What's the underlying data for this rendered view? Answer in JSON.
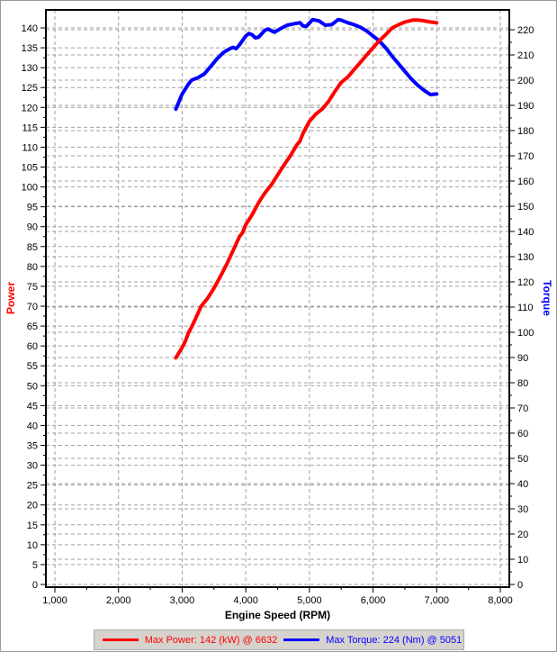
{
  "colors": {
    "power": "#ff0000",
    "torque": "#0000ff",
    "grid": "#a0a0a0",
    "axis_frame": "#000000",
    "legend_bg": "#d6d3ce",
    "legend_border": "#aca9a2"
  },
  "chart_data": {
    "type": "line",
    "title": "",
    "xlabel": "Engine Speed (RPM)",
    "grid": "on",
    "legend_position": "bottom",
    "x_axis": {
      "range": [
        858,
        8141
      ],
      "major_ticks": [
        1000,
        2000,
        3000,
        4000,
        5000,
        6000,
        7000,
        8000
      ],
      "tick_labels": [
        "1,000",
        "2,000",
        "3,000",
        "4,000",
        "5,000",
        "6,000",
        "7,000",
        "8,000"
      ],
      "minor_step": 500
    },
    "left_axis": {
      "label": "Power",
      "units": "kW",
      "color": "#ff0000",
      "tick_min": 0,
      "tick_max": 140,
      "major_step": 5,
      "minor_step": 2.5
    },
    "right_axis": {
      "label": "Torque",
      "units": "Nm",
      "color": "#0000ff",
      "tick_min": 0,
      "tick_max": 220,
      "major_step": 10,
      "minor_step": 5
    },
    "series": [
      {
        "name": "power",
        "axis": "left",
        "color": "#ff0000",
        "x": [
          2900,
          2950,
          3000,
          3050,
          3100,
          3150,
          3200,
          3300,
          3400,
          3500,
          3600,
          3700,
          3800,
          3900,
          3950,
          4000,
          4100,
          4200,
          4300,
          4400,
          4500,
          4600,
          4700,
          4800,
          4850,
          4900,
          5000,
          5100,
          5200,
          5300,
          5400,
          5500,
          5600,
          5700,
          5800,
          5900,
          6000,
          6100,
          6200,
          6300,
          6400,
          6500,
          6632,
          6700,
          6800,
          6900,
          7000
        ],
        "y": [
          57,
          58.3,
          59.6,
          61.2,
          63.3,
          64.8,
          66.5,
          70,
          72,
          74.5,
          77.5,
          80.5,
          84,
          87.5,
          88.5,
          90.5,
          93,
          96,
          98.5,
          100.5,
          103,
          105.5,
          107.8,
          110.5,
          111.5,
          113.5,
          116.5,
          118.3,
          119.6,
          121.5,
          124,
          126.3,
          127.6,
          129.5,
          131.3,
          133.2,
          135,
          136.8,
          138.3,
          140,
          140.8,
          141.5,
          142,
          142,
          141.8,
          141.5,
          141.3
        ]
      },
      {
        "name": "torque",
        "axis": "right",
        "color": "#0000ff",
        "x": [
          2900,
          2950,
          3000,
          3050,
          3100,
          3150,
          3250,
          3350,
          3450,
          3550,
          3650,
          3750,
          3800,
          3850,
          3900,
          4000,
          4050,
          4100,
          4150,
          4200,
          4300,
          4350,
          4450,
          4550,
          4650,
          4750,
          4850,
          4900,
          4950,
          5051,
          5150,
          5250,
          5350,
          5450,
          5500,
          5600,
          5700,
          5800,
          5900,
          5950,
          6000,
          6100,
          6200,
          6300,
          6400,
          6500,
          6600,
          6700,
          6800,
          6900,
          7000
        ],
        "y": [
          188.5,
          191.5,
          194.5,
          196.5,
          198.5,
          200,
          201,
          202.5,
          205.5,
          208.5,
          211,
          212.5,
          213,
          212.5,
          214,
          217.5,
          218.5,
          218,
          216.8,
          217,
          219.8,
          220.3,
          219,
          220.5,
          221.8,
          222.3,
          222.8,
          221.5,
          221.3,
          224,
          223.5,
          221.8,
          222,
          224,
          223.8,
          222.8,
          222,
          221,
          219.5,
          218.5,
          217.5,
          215.5,
          212.8,
          209.5,
          206.5,
          203.5,
          200.5,
          198,
          196,
          194.3,
          194.5
        ]
      }
    ],
    "annotations": {
      "max_power": {
        "value": 142,
        "units": "kW",
        "rpm": 6632
      },
      "max_torque": {
        "value": 224,
        "units": "Nm",
        "rpm": 5051
      }
    }
  },
  "legend": {
    "power_label": "Max Power: 142 (kW) @ 6632",
    "torque_label": "Max Torque: 224 (Nm) @ 5051"
  }
}
